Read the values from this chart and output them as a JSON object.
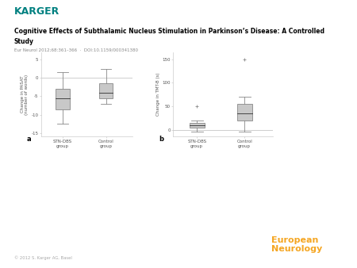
{
  "title_line1": "Cognitive Effects of Subthalamic Nucleus Stimulation in Parkinson’s Disease: A Controlled",
  "title_line2": "Study",
  "subtitle": "Eur Neurol 2012;68:361–366  ·  DOI:10.1159/000341380",
  "karger_color": "#008080",
  "euro_neurol_color": "#f5a623",
  "copyright_text": "© 2012 S. Karger AG, Basel",
  "plot_a": {
    "label": "a",
    "ylabel": "Change in PASAT\n(number of words)",
    "yticks": [
      5,
      0,
      -5,
      -10,
      -15
    ],
    "ylim": [
      -16,
      7
    ],
    "groups": [
      "STN-DBS\ngroup",
      "Control\ngroup"
    ],
    "box1": {
      "q1": -8.5,
      "median": -5.5,
      "q3": -3.0,
      "whisker_low": -12.5,
      "whisker_high": 1.5,
      "outliers": []
    },
    "box2": {
      "q1": -5.5,
      "median": -4.0,
      "q3": -1.5,
      "whisker_low": -7.0,
      "whisker_high": 2.5,
      "outliers": []
    },
    "box_color": "#c8c8c8",
    "box_linecolor": "#888888",
    "zero_line": 0
  },
  "plot_b": {
    "label": "b",
    "ylabel": "Change in TMT-B (s)",
    "yticks": [
      0,
      50,
      100,
      150
    ],
    "ylim": [
      -15,
      165
    ],
    "groups": [
      "STN-DBS\ngroup",
      "Control\ngroup"
    ],
    "box1": {
      "q1": 5.0,
      "median": 10.0,
      "q3": 15.0,
      "whisker_low": -5.0,
      "whisker_high": 20.0,
      "outliers": [
        50.0
      ]
    },
    "box2": {
      "q1": 20.0,
      "median": 35.0,
      "q3": 55.0,
      "whisker_low": -5.0,
      "whisker_high": 70.0,
      "outliers": [
        150.0
      ]
    },
    "box_color": "#c8c8c8",
    "box_linecolor": "#888888",
    "zero_line": 0
  }
}
